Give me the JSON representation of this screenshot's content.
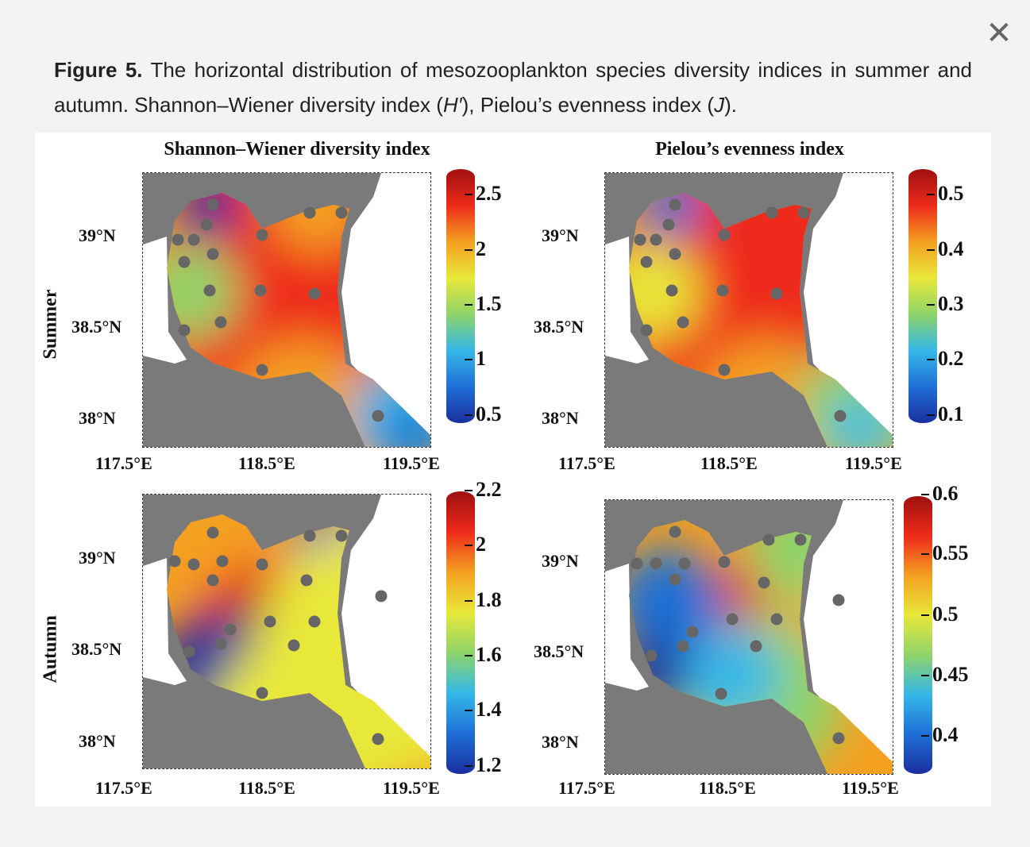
{
  "close_icon": "close-icon",
  "caption": {
    "label": "Figure 5.",
    "text_1": " The horizontal distribution of mesozooplankton species diversity indices in summer and autumn. Shannon–Wiener diversity index (",
    "h_symbol": "H′",
    "text_2": "), Pielou’s evenness index (",
    "j_symbol": "J",
    "text_3": ")."
  },
  "columns": [
    "Shannon–Wiener diversity index",
    "Pielou’s evenness index"
  ],
  "rows": [
    "Summer",
    "Autumn"
  ],
  "lat_labels": [
    "39°N",
    "38.5°N",
    "38°N"
  ],
  "lon_labels": [
    "117.5°E",
    "118.5°E",
    "119.5°E"
  ],
  "colorbars": {
    "summer_h": [
      "2.5",
      "2",
      "1.5",
      "1",
      "0.5"
    ],
    "summer_j": [
      "0.5",
      "0.4",
      "0.3",
      "0.2",
      "0.1"
    ],
    "autumn_h": [
      "2.2",
      "2",
      "1.8",
      "1.6",
      "1.4",
      "1.2"
    ],
    "autumn_j": [
      "0.6",
      "0.55",
      "0.5",
      "0.45",
      "0.4"
    ]
  },
  "colors": {
    "land": "#7a7a7a",
    "station": "#666666",
    "scale": [
      "#1a2f9e",
      "#1f6fd6",
      "#35b8e8",
      "#8fd46a",
      "#e8e83a",
      "#f4a020",
      "#ee2a1a",
      "#9e1010"
    ]
  }
}
